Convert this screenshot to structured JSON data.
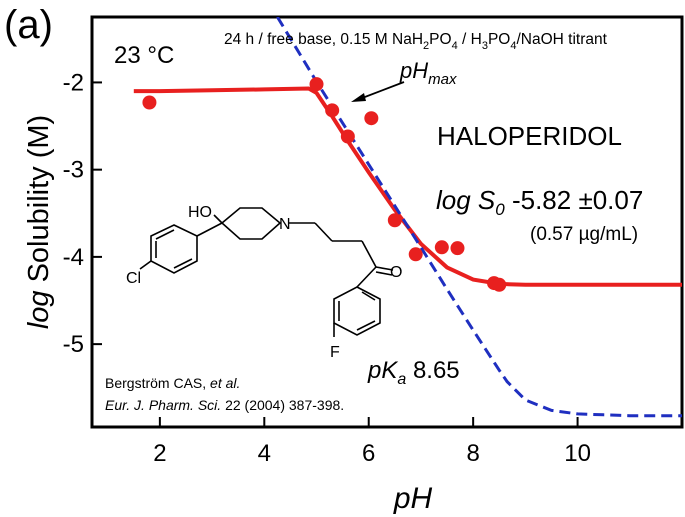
{
  "chart_data": {
    "type": "scatter",
    "panel_label": "(a)",
    "title": "HALOPERIDOL",
    "conditions": "24 h / free base, 0.15 M NaH2PO4 / H3PO4/NaOH titrant",
    "temperature": "23 °C",
    "xlabel": "pH",
    "ylabel": "log Solubility (M)",
    "xlim": [
      0.7,
      12
    ],
    "ylim": [
      -5.95,
      -1.25
    ],
    "x_ticks": [
      2,
      4,
      6,
      8,
      10
    ],
    "y_ticks": [
      -2,
      -3,
      -4,
      -5
    ],
    "grid": false,
    "series": [
      {
        "kind": "points",
        "color": "#e8201f",
        "points": [
          {
            "x": 1.8,
            "y": -2.23
          },
          {
            "x": 5.0,
            "y": -2.02
          },
          {
            "x": 5.3,
            "y": -2.32
          },
          {
            "x": 5.6,
            "y": -2.62
          },
          {
            "x": 6.05,
            "y": -2.41
          },
          {
            "x": 6.5,
            "y": -3.58
          },
          {
            "x": 6.9,
            "y": -3.97
          },
          {
            "x": 7.4,
            "y": -3.89
          },
          {
            "x": 7.7,
            "y": -3.9
          },
          {
            "x": 8.4,
            "y": -4.3
          },
          {
            "x": 8.5,
            "y": -4.32
          }
        ]
      },
      {
        "kind": "line",
        "style": "solid",
        "color": "#e8201f",
        "x": [
          1.5,
          2,
          3,
          4,
          4.85,
          5.0,
          5.3,
          5.6,
          6.0,
          6.5,
          7.0,
          7.5,
          8.0,
          8.5,
          9.0,
          10,
          11,
          12
        ],
        "y": [
          -2.1,
          -2.1,
          -2.09,
          -2.08,
          -2.07,
          -2.12,
          -2.39,
          -2.67,
          -3.03,
          -3.46,
          -3.85,
          -4.12,
          -4.26,
          -4.31,
          -4.32,
          -4.32,
          -4.32,
          -4.32
        ]
      },
      {
        "kind": "line",
        "style": "dashed",
        "color": "#1f2fc0",
        "x": [
          4.25,
          5.0,
          6.0,
          7.0,
          7.5,
          8.0,
          8.5,
          8.65,
          9.0,
          9.5,
          10.0,
          10.5,
          11.0,
          12.0
        ],
        "y": [
          -1.25,
          -1.99,
          -2.94,
          -3.89,
          -4.37,
          -4.84,
          -5.3,
          -5.43,
          -5.64,
          -5.76,
          -5.8,
          -5.81,
          -5.82,
          -5.82
        ]
      }
    ],
    "annotations": {
      "phmax": "pH",
      "phmax_sub": "max",
      "logs0_prefix": "log S",
      "logs0_sub": "0",
      "logs0_value": "-5.82 ±0.07",
      "logs0_gml": "(0.57 µg/mL)",
      "pka_prefix": "pK",
      "pka_sub": "a",
      "pka_value": "8.65",
      "citation_line1_a": "Bergström CAS, ",
      "citation_line1_b": "et al.",
      "citation_line2_a": "Eur. J. Pharm. Sci.",
      "citation_line2_b": " 22 (2004) 387-398."
    },
    "structure_labels": {
      "ho": "HO",
      "n": "N",
      "o": "O",
      "cl": "Cl",
      "f": "F"
    }
  }
}
